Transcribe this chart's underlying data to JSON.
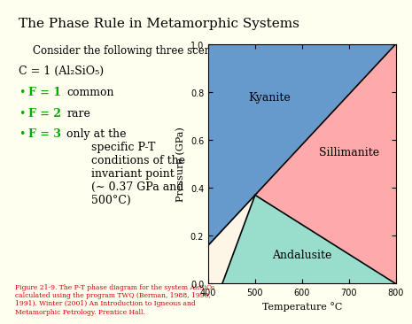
{
  "title": "The Phase Rule in Metamorphic Systems",
  "subtitle": "Consider the following three scenarios:",
  "formula_line": "C = 1 (Al₂SiO₅)",
  "bullets": [
    {
      "color": "#00aa00",
      "text_colored": "F = 1",
      "text_black": "  common"
    },
    {
      "color": "#00aa00",
      "text_colored": "F = 2",
      "text_black": "  rare"
    },
    {
      "color": "#00aa00",
      "text_colored": "F = 3",
      "text_black": "  only at the\n       specific P-T\n       conditions of the\n       invariant point\n       (∼ 0.37 GPa and\n       500°C)"
    }
  ],
  "caption": "Figure 21-9. The P-T phase diagram for the system Al₂SiO₅\ncalculated using the program TWQ (Berman, 1988, 1990,\n1991). Winter (2001) An Introduction to Igneous and\nMetamorphic Petrology. Prentice Hall.",
  "caption_color": "#cc0000",
  "bg_color": "#fffff0",
  "plot_bg_color": "#fdf5e6",
  "kyanite_color": "#6699cc",
  "sillimanite_color": "#ffaaaa",
  "andalusite_color": "#99ddcc",
  "xmin": 400,
  "xmax": 800,
  "ymin": 0,
  "ymax": 1.0,
  "invariant_T": 500,
  "invariant_P": 0.37,
  "xlabel": "Temperature °C",
  "ylabel": "Pressure (GPa)",
  "ky_label": "Kyanite",
  "sil_label": "Sillimanite",
  "and_label": "Andalusite",
  "line1_T1": 400,
  "line1_P1": 0.25,
  "line1_T2": 800,
  "line1_P2": 1.0,
  "line2_T1": 400,
  "line2_P1": 0.25,
  "line2_T2": 800,
  "line2_P2": 0.0,
  "line3_T1": 500,
  "line3_P1": 0.37,
  "line3_T2": 800,
  "line3_P2": 1.0
}
